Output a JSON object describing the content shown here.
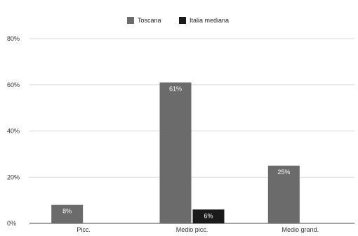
{
  "chart_data": {
    "type": "bar",
    "title": "",
    "xlabel": "",
    "ylabel": "",
    "categories": [
      "Picc.",
      "Medio picc.",
      "Medio grand."
    ],
    "series": [
      {
        "name": "Toscana",
        "values": [
          8,
          61,
          25
        ],
        "labels": [
          "8%",
          "61%",
          "25%"
        ],
        "color": "#6b6b6b"
      },
      {
        "name": "Italia mediana",
        "values": [
          null,
          6,
          null
        ],
        "labels": [
          "",
          "6%",
          ""
        ],
        "color": "#1a1a1a"
      }
    ],
    "ylim": [
      0,
      80
    ],
    "yticks": [
      0,
      20,
      40,
      60,
      80
    ],
    "ytick_labels": [
      "0%",
      "20%",
      "40%",
      "60%",
      "80%"
    ],
    "grid": true,
    "legend": "top-center"
  }
}
